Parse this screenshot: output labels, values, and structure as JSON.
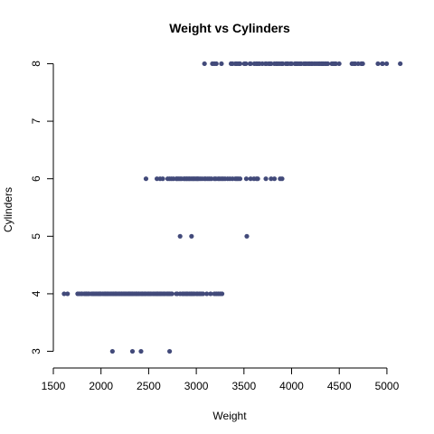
{
  "chart_data": {
    "type": "scatter",
    "title": "Weight vs Cylinders",
    "xlabel": "Weight",
    "ylabel": "Cylinders",
    "xlim": [
      1500,
      5200
    ],
    "ylim": [
      3,
      8
    ],
    "xticks": [
      1500,
      2000,
      2500,
      3000,
      3500,
      4000,
      4500,
      5000
    ],
    "yticks": [
      3,
      4,
      5,
      6,
      7,
      8
    ],
    "grid": false,
    "legend": "none",
    "marker_color": "#424a7a",
    "series": [
      {
        "points": [
          [
            2120,
            3
          ],
          [
            2330,
            3
          ],
          [
            2420,
            3
          ],
          [
            2720,
            3
          ],
          [
            1613,
            4
          ],
          [
            1649,
            4
          ],
          [
            1755,
            4
          ],
          [
            1773,
            4
          ],
          [
            1795,
            4
          ],
          [
            1800,
            4
          ],
          [
            1825,
            4
          ],
          [
            1834,
            4
          ],
          [
            1845,
            4
          ],
          [
            1850,
            4
          ],
          [
            1867,
            4
          ],
          [
            1875,
            4
          ],
          [
            1900,
            4
          ],
          [
            1915,
            4
          ],
          [
            1925,
            4
          ],
          [
            1937,
            4
          ],
          [
            1950,
            4
          ],
          [
            1965,
            4
          ],
          [
            1975,
            4
          ],
          [
            1985,
            4
          ],
          [
            1990,
            4
          ],
          [
            2000,
            4
          ],
          [
            2020,
            4
          ],
          [
            2035,
            4
          ],
          [
            2045,
            4
          ],
          [
            2050,
            4
          ],
          [
            2065,
            4
          ],
          [
            2070,
            4
          ],
          [
            2085,
            4
          ],
          [
            2100,
            4
          ],
          [
            2110,
            4
          ],
          [
            2125,
            4
          ],
          [
            2130,
            4
          ],
          [
            2145,
            4
          ],
          [
            2155,
            4
          ],
          [
            2160,
            4
          ],
          [
            2175,
            4
          ],
          [
            2190,
            4
          ],
          [
            2200,
            4
          ],
          [
            2215,
            4
          ],
          [
            2220,
            4
          ],
          [
            2234,
            4
          ],
          [
            2245,
            4
          ],
          [
            2255,
            4
          ],
          [
            2265,
            4
          ],
          [
            2278,
            4
          ],
          [
            2290,
            4
          ],
          [
            2295,
            4
          ],
          [
            2300,
            4
          ],
          [
            2310,
            4
          ],
          [
            2320,
            4
          ],
          [
            2330,
            4
          ],
          [
            2335,
            4
          ],
          [
            2350,
            4
          ],
          [
            2365,
            4
          ],
          [
            2370,
            4
          ],
          [
            2380,
            4
          ],
          [
            2395,
            4
          ],
          [
            2400,
            4
          ],
          [
            2420,
            4
          ],
          [
            2430,
            4
          ],
          [
            2434,
            4
          ],
          [
            2450,
            4
          ],
          [
            2464,
            4
          ],
          [
            2470,
            4
          ],
          [
            2490,
            4
          ],
          [
            2500,
            4
          ],
          [
            2515,
            4
          ],
          [
            2525,
            4
          ],
          [
            2545,
            4
          ],
          [
            2560,
            4
          ],
          [
            2575,
            4
          ],
          [
            2585,
            4
          ],
          [
            2595,
            4
          ],
          [
            2600,
            4
          ],
          [
            2615,
            4
          ],
          [
            2625,
            4
          ],
          [
            2635,
            4
          ],
          [
            2650,
            4
          ],
          [
            2665,
            4
          ],
          [
            2670,
            4
          ],
          [
            2690,
            4
          ],
          [
            2700,
            4
          ],
          [
            2711,
            4
          ],
          [
            2720,
            4
          ],
          [
            2735,
            4
          ],
          [
            2745,
            4
          ],
          [
            2790,
            4
          ],
          [
            2800,
            4
          ],
          [
            2830,
            4
          ],
          [
            2855,
            4
          ],
          [
            2870,
            4
          ],
          [
            2890,
            4
          ],
          [
            2900,
            4
          ],
          [
            2910,
            4
          ],
          [
            2930,
            4
          ],
          [
            2945,
            4
          ],
          [
            2950,
            4
          ],
          [
            2965,
            4
          ],
          [
            2980,
            4
          ],
          [
            3003,
            4
          ],
          [
            3015,
            4
          ],
          [
            3035,
            4
          ],
          [
            3050,
            4
          ],
          [
            3070,
            4
          ],
          [
            3110,
            4
          ],
          [
            3150,
            4
          ],
          [
            3190,
            4
          ],
          [
            3210,
            4
          ],
          [
            3230,
            4
          ],
          [
            3250,
            4
          ],
          [
            3270,
            4
          ],
          [
            2830,
            5
          ],
          [
            2950,
            5
          ],
          [
            3530,
            5
          ],
          [
            2472,
            6
          ],
          [
            2587,
            6
          ],
          [
            2620,
            6
          ],
          [
            2648,
            6
          ],
          [
            2700,
            6
          ],
          [
            2720,
            6
          ],
          [
            2740,
            6
          ],
          [
            2760,
            6
          ],
          [
            2790,
            6
          ],
          [
            2800,
            6
          ],
          [
            2815,
            6
          ],
          [
            2830,
            6
          ],
          [
            2845,
            6
          ],
          [
            2870,
            6
          ],
          [
            2880,
            6
          ],
          [
            2895,
            6
          ],
          [
            2905,
            6
          ],
          [
            2920,
            6
          ],
          [
            2930,
            6
          ],
          [
            2945,
            6
          ],
          [
            2960,
            6
          ],
          [
            2972,
            6
          ],
          [
            2985,
            6
          ],
          [
            3000,
            6
          ],
          [
            3012,
            6
          ],
          [
            3021,
            6
          ],
          [
            3039,
            6
          ],
          [
            3060,
            6
          ],
          [
            3085,
            6
          ],
          [
            3100,
            6
          ],
          [
            3121,
            6
          ],
          [
            3139,
            6
          ],
          [
            3158,
            6
          ],
          [
            3190,
            6
          ],
          [
            3205,
            6
          ],
          [
            3230,
            6
          ],
          [
            3245,
            6
          ],
          [
            3265,
            6
          ],
          [
            3282,
            6
          ],
          [
            3302,
            6
          ],
          [
            3329,
            6
          ],
          [
            3353,
            6
          ],
          [
            3380,
            6
          ],
          [
            3410,
            6
          ],
          [
            3425,
            6
          ],
          [
            3440,
            6
          ],
          [
            3459,
            6
          ],
          [
            3525,
            6
          ],
          [
            3570,
            6
          ],
          [
            3605,
            6
          ],
          [
            3632,
            6
          ],
          [
            3645,
            6
          ],
          [
            3730,
            6
          ],
          [
            3785,
            6
          ],
          [
            3820,
            6
          ],
          [
            3880,
            6
          ],
          [
            3900,
            6
          ],
          [
            3086,
            8
          ],
          [
            3169,
            8
          ],
          [
            3190,
            8
          ],
          [
            3210,
            8
          ],
          [
            3264,
            8
          ],
          [
            3365,
            8
          ],
          [
            3380,
            8
          ],
          [
            3410,
            8
          ],
          [
            3425,
            8
          ],
          [
            3445,
            8
          ],
          [
            3459,
            8
          ],
          [
            3504,
            8
          ],
          [
            3520,
            8
          ],
          [
            3563,
            8
          ],
          [
            3570,
            8
          ],
          [
            3609,
            8
          ],
          [
            3630,
            8
          ],
          [
            3645,
            8
          ],
          [
            3664,
            8
          ],
          [
            3693,
            8
          ],
          [
            3725,
            8
          ],
          [
            3735,
            8
          ],
          [
            3761,
            8
          ],
          [
            3777,
            8
          ],
          [
            3785,
            8
          ],
          [
            3820,
            8
          ],
          [
            3840,
            8
          ],
          [
            3850,
            8
          ],
          [
            3870,
            8
          ],
          [
            3892,
            8
          ],
          [
            3900,
            8
          ],
          [
            3907,
            8
          ],
          [
            3940,
            8
          ],
          [
            3955,
            8
          ],
          [
            3962,
            8
          ],
          [
            3988,
            8
          ],
          [
            4000,
            8
          ],
          [
            4035,
            8
          ],
          [
            4042,
            8
          ],
          [
            4054,
            8
          ],
          [
            4060,
            8
          ],
          [
            4080,
            8
          ],
          [
            4098,
            8
          ],
          [
            4100,
            8
          ],
          [
            4129,
            8
          ],
          [
            4141,
            8
          ],
          [
            4154,
            8
          ],
          [
            4175,
            8
          ],
          [
            4190,
            8
          ],
          [
            4209,
            8
          ],
          [
            4215,
            8
          ],
          [
            4237,
            8
          ],
          [
            4257,
            8
          ],
          [
            4278,
            8
          ],
          [
            4294,
            8
          ],
          [
            4312,
            8
          ],
          [
            4325,
            8
          ],
          [
            4335,
            8
          ],
          [
            4354,
            8
          ],
          [
            4363,
            8
          ],
          [
            4380,
            8
          ],
          [
            4422,
            8
          ],
          [
            4440,
            8
          ],
          [
            4456,
            8
          ],
          [
            4464,
            8
          ],
          [
            4499,
            8
          ],
          [
            4633,
            8
          ],
          [
            4654,
            8
          ],
          [
            4668,
            8
          ],
          [
            4699,
            8
          ],
          [
            4732,
            8
          ],
          [
            4735,
            8
          ],
          [
            4746,
            8
          ],
          [
            4906,
            8
          ],
          [
            4951,
            8
          ],
          [
            4955,
            8
          ],
          [
            4997,
            8
          ],
          [
            5140,
            8
          ]
        ]
      }
    ]
  }
}
